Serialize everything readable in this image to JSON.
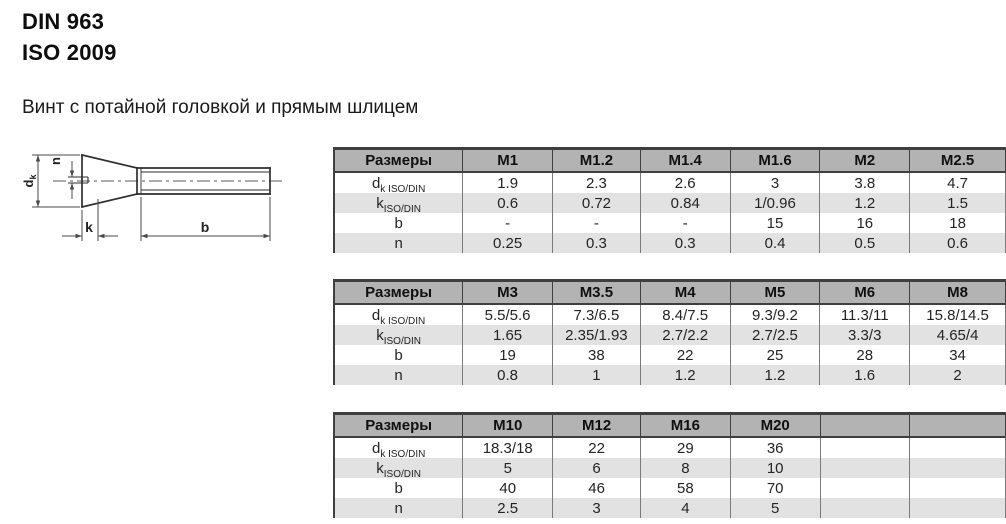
{
  "page": {
    "title_line1": "DIN 963",
    "title_line2": "ISO 2009",
    "subtitle": "Винт с потайной головкой и прямым шлицем"
  },
  "drawing": {
    "labels": {
      "dk_base": "d",
      "dk_sub": "k",
      "n": "n",
      "k": "k",
      "b": "b"
    }
  },
  "colors": {
    "header_bg": "#b3b3b3",
    "stripe_bg": "#e2e2e2",
    "border_dark": "#3f3f3f",
    "border_cell": "#7a7a7a"
  },
  "tables": [
    {
      "header_label": "Размеры",
      "columns": [
        "M1",
        "M1.2",
        "M1.4",
        "M1.6",
        "M2",
        "M2.5"
      ],
      "rows": [
        {
          "label_base": "d",
          "label_sub": "k ISO/DIN",
          "values": [
            "1.9",
            "2.3",
            "2.6",
            "3",
            "3.8",
            "4.7"
          ]
        },
        {
          "label_base": "k",
          "label_sub": "ISO/DIN",
          "values": [
            "0.6",
            "0.72",
            "0.84",
            "1/0.96",
            "1.2",
            "1.5"
          ]
        },
        {
          "label_base": "b",
          "label_sub": "",
          "values": [
            "-",
            "-",
            "-",
            "15",
            "16",
            "18"
          ]
        },
        {
          "label_base": "n",
          "label_sub": "",
          "values": [
            "0.25",
            "0.3",
            "0.3",
            "0.4",
            "0.5",
            "0.6"
          ]
        }
      ]
    },
    {
      "header_label": "Размеры",
      "columns": [
        "M3",
        "M3.5",
        "M4",
        "M5",
        "M6",
        "M8"
      ],
      "rows": [
        {
          "label_base": "d",
          "label_sub": "k ISO/DIN",
          "values": [
            "5.5/5.6",
            "7.3/6.5",
            "8.4/7.5",
            "9.3/9.2",
            "11.3/11",
            "15.8/14.5"
          ]
        },
        {
          "label_base": "k",
          "label_sub": "ISO/DIN",
          "values": [
            "1.65",
            "2.35/1.93",
            "2.7/2.2",
            "2.7/2.5",
            "3.3/3",
            "4.65/4"
          ]
        },
        {
          "label_base": "b",
          "label_sub": "",
          "values": [
            "19",
            "38",
            "22",
            "25",
            "28",
            "34"
          ]
        },
        {
          "label_base": "n",
          "label_sub": "",
          "values": [
            "0.8",
            "1",
            "1.2",
            "1.2",
            "1.6",
            "2"
          ]
        }
      ]
    },
    {
      "header_label": "Размеры",
      "columns": [
        "M10",
        "M12",
        "M16",
        "M20",
        "",
        ""
      ],
      "rows": [
        {
          "label_base": "d",
          "label_sub": "k ISO/DIN",
          "values": [
            "18.3/18",
            "22",
            "29",
            "36",
            "",
            ""
          ]
        },
        {
          "label_base": "k",
          "label_sub": "ISO/DIN",
          "values": [
            "5",
            "6",
            "8",
            "10",
            "",
            ""
          ]
        },
        {
          "label_base": "b",
          "label_sub": "",
          "values": [
            "40",
            "46",
            "58",
            "70",
            "",
            ""
          ]
        },
        {
          "label_base": "n",
          "label_sub": "",
          "values": [
            "2.5",
            "3",
            "4",
            "5",
            "",
            ""
          ]
        }
      ]
    }
  ]
}
